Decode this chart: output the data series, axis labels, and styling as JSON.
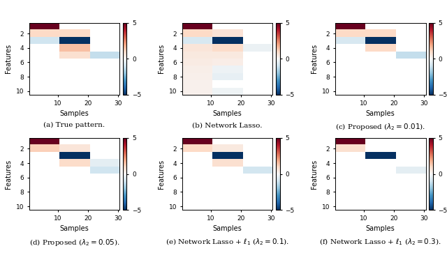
{
  "n_features": 10,
  "n_samples": 30,
  "vmin": -5,
  "vmax": 5,
  "cmap": "RdBu_r",
  "figsize": [
    6.4,
    3.63
  ],
  "subtitles": [
    "(a) True pattern.",
    "(b) Network Lasso.",
    "(c) Proposed ($\\lambda_2 = 0.01$).",
    "(d) Proposed ($\\lambda_2 = 0.05$).",
    "(e) Network Lasso + $\\ell_1$ ($\\lambda_2 = 0.1$).",
    "(f) Network Lasso + $\\ell_1$ ($\\lambda_2 = 0.3$)."
  ],
  "xlabel": "Samples",
  "ylabel": "Features",
  "xticks": [
    10,
    20,
    30
  ],
  "yticks": [
    2,
    4,
    6,
    8,
    10
  ],
  "patterns": [
    {
      "name": "true",
      "blocks": [
        {
          "rows": [
            0,
            1
          ],
          "cols": [
            0,
            10
          ],
          "val": 5.0
        },
        {
          "rows": [
            1,
            2
          ],
          "cols": [
            0,
            20
          ],
          "val": 1.0
        },
        {
          "rows": [
            2,
            3
          ],
          "cols": [
            0,
            10
          ],
          "val": -1.0
        },
        {
          "rows": [
            2,
            3
          ],
          "cols": [
            10,
            20
          ],
          "val": -5.0
        },
        {
          "rows": [
            3,
            4
          ],
          "cols": [
            10,
            20
          ],
          "val": 1.5
        },
        {
          "rows": [
            4,
            5
          ],
          "cols": [
            10,
            20
          ],
          "val": 0.8
        },
        {
          "rows": [
            4,
            5
          ],
          "cols": [
            20,
            30
          ],
          "val": -1.2
        }
      ]
    },
    {
      "name": "network_lasso",
      "blocks": [
        {
          "rows": [
            0,
            1
          ],
          "cols": [
            0,
            10
          ],
          "val": 5.0
        },
        {
          "rows": [
            1,
            2
          ],
          "cols": [
            0,
            10
          ],
          "val": 1.0
        },
        {
          "rows": [
            1,
            2
          ],
          "cols": [
            10,
            20
          ],
          "val": 0.7
        },
        {
          "rows": [
            2,
            3
          ],
          "cols": [
            0,
            10
          ],
          "val": -0.8
        },
        {
          "rows": [
            2,
            3
          ],
          "cols": [
            10,
            20
          ],
          "val": -5.0
        },
        {
          "rows": [
            3,
            4
          ],
          "cols": [
            0,
            10
          ],
          "val": 0.6
        },
        {
          "rows": [
            3,
            4
          ],
          "cols": [
            10,
            20
          ],
          "val": 0.9
        },
        {
          "rows": [
            3,
            4
          ],
          "cols": [
            20,
            30
          ],
          "val": -0.3
        },
        {
          "rows": [
            4,
            5
          ],
          "cols": [
            0,
            10
          ],
          "val": 0.5
        },
        {
          "rows": [
            4,
            5
          ],
          "cols": [
            10,
            20
          ],
          "val": 0.5
        },
        {
          "rows": [
            5,
            6
          ],
          "cols": [
            0,
            10
          ],
          "val": 0.4
        },
        {
          "rows": [
            5,
            6
          ],
          "cols": [
            10,
            20
          ],
          "val": 0.35
        },
        {
          "rows": [
            6,
            7
          ],
          "cols": [
            0,
            10
          ],
          "val": 0.3
        },
        {
          "rows": [
            6,
            7
          ],
          "cols": [
            10,
            20
          ],
          "val": -0.25
        },
        {
          "rows": [
            7,
            8
          ],
          "cols": [
            0,
            10
          ],
          "val": 0.25
        },
        {
          "rows": [
            7,
            8
          ],
          "cols": [
            10,
            20
          ],
          "val": -0.4
        },
        {
          "rows": [
            8,
            9
          ],
          "cols": [
            0,
            10
          ],
          "val": 0.2
        },
        {
          "rows": [
            9,
            10
          ],
          "cols": [
            0,
            10
          ],
          "val": 0.2
        },
        {
          "rows": [
            9,
            10
          ],
          "cols": [
            10,
            20
          ],
          "val": -0.2
        }
      ]
    },
    {
      "name": "proposed_0.01",
      "blocks": [
        {
          "rows": [
            0,
            1
          ],
          "cols": [
            0,
            10
          ],
          "val": 5.0
        },
        {
          "rows": [
            1,
            2
          ],
          "cols": [
            0,
            20
          ],
          "val": 1.0
        },
        {
          "rows": [
            2,
            3
          ],
          "cols": [
            0,
            10
          ],
          "val": -0.8
        },
        {
          "rows": [
            2,
            3
          ],
          "cols": [
            10,
            20
          ],
          "val": -5.0
        },
        {
          "rows": [
            3,
            4
          ],
          "cols": [
            10,
            20
          ],
          "val": 1.0
        },
        {
          "rows": [
            4,
            5
          ],
          "cols": [
            20,
            30
          ],
          "val": -1.2
        }
      ]
    },
    {
      "name": "proposed_0.05",
      "blocks": [
        {
          "rows": [
            0,
            1
          ],
          "cols": [
            0,
            10
          ],
          "val": 5.0
        },
        {
          "rows": [
            1,
            2
          ],
          "cols": [
            0,
            10
          ],
          "val": 1.2
        },
        {
          "rows": [
            1,
            2
          ],
          "cols": [
            10,
            20
          ],
          "val": 0.6
        },
        {
          "rows": [
            2,
            3
          ],
          "cols": [
            10,
            20
          ],
          "val": -5.0
        },
        {
          "rows": [
            3,
            4
          ],
          "cols": [
            10,
            20
          ],
          "val": 0.9
        },
        {
          "rows": [
            3,
            4
          ],
          "cols": [
            20,
            30
          ],
          "val": -0.5
        },
        {
          "rows": [
            4,
            5
          ],
          "cols": [
            20,
            30
          ],
          "val": -1.0
        }
      ]
    },
    {
      "name": "network_lasso_l1_0.1",
      "blocks": [
        {
          "rows": [
            0,
            1
          ],
          "cols": [
            0,
            10
          ],
          "val": 5.0
        },
        {
          "rows": [
            1,
            2
          ],
          "cols": [
            0,
            10
          ],
          "val": 1.0
        },
        {
          "rows": [
            1,
            2
          ],
          "cols": [
            10,
            20
          ],
          "val": 0.5
        },
        {
          "rows": [
            2,
            3
          ],
          "cols": [
            10,
            20
          ],
          "val": -5.0
        },
        {
          "rows": [
            3,
            4
          ],
          "cols": [
            10,
            20
          ],
          "val": 0.8
        },
        {
          "rows": [
            4,
            5
          ],
          "cols": [
            20,
            30
          ],
          "val": -0.9
        }
      ]
    },
    {
      "name": "network_lasso_l1_0.3",
      "blocks": [
        {
          "rows": [
            0,
            1
          ],
          "cols": [
            0,
            10
          ],
          "val": 5.0
        },
        {
          "rows": [
            1,
            2
          ],
          "cols": [
            0,
            10
          ],
          "val": 0.8
        },
        {
          "rows": [
            2,
            3
          ],
          "cols": [
            10,
            20
          ],
          "val": -5.0
        },
        {
          "rows": [
            4,
            5
          ],
          "cols": [
            20,
            30
          ],
          "val": -0.5
        }
      ]
    }
  ]
}
